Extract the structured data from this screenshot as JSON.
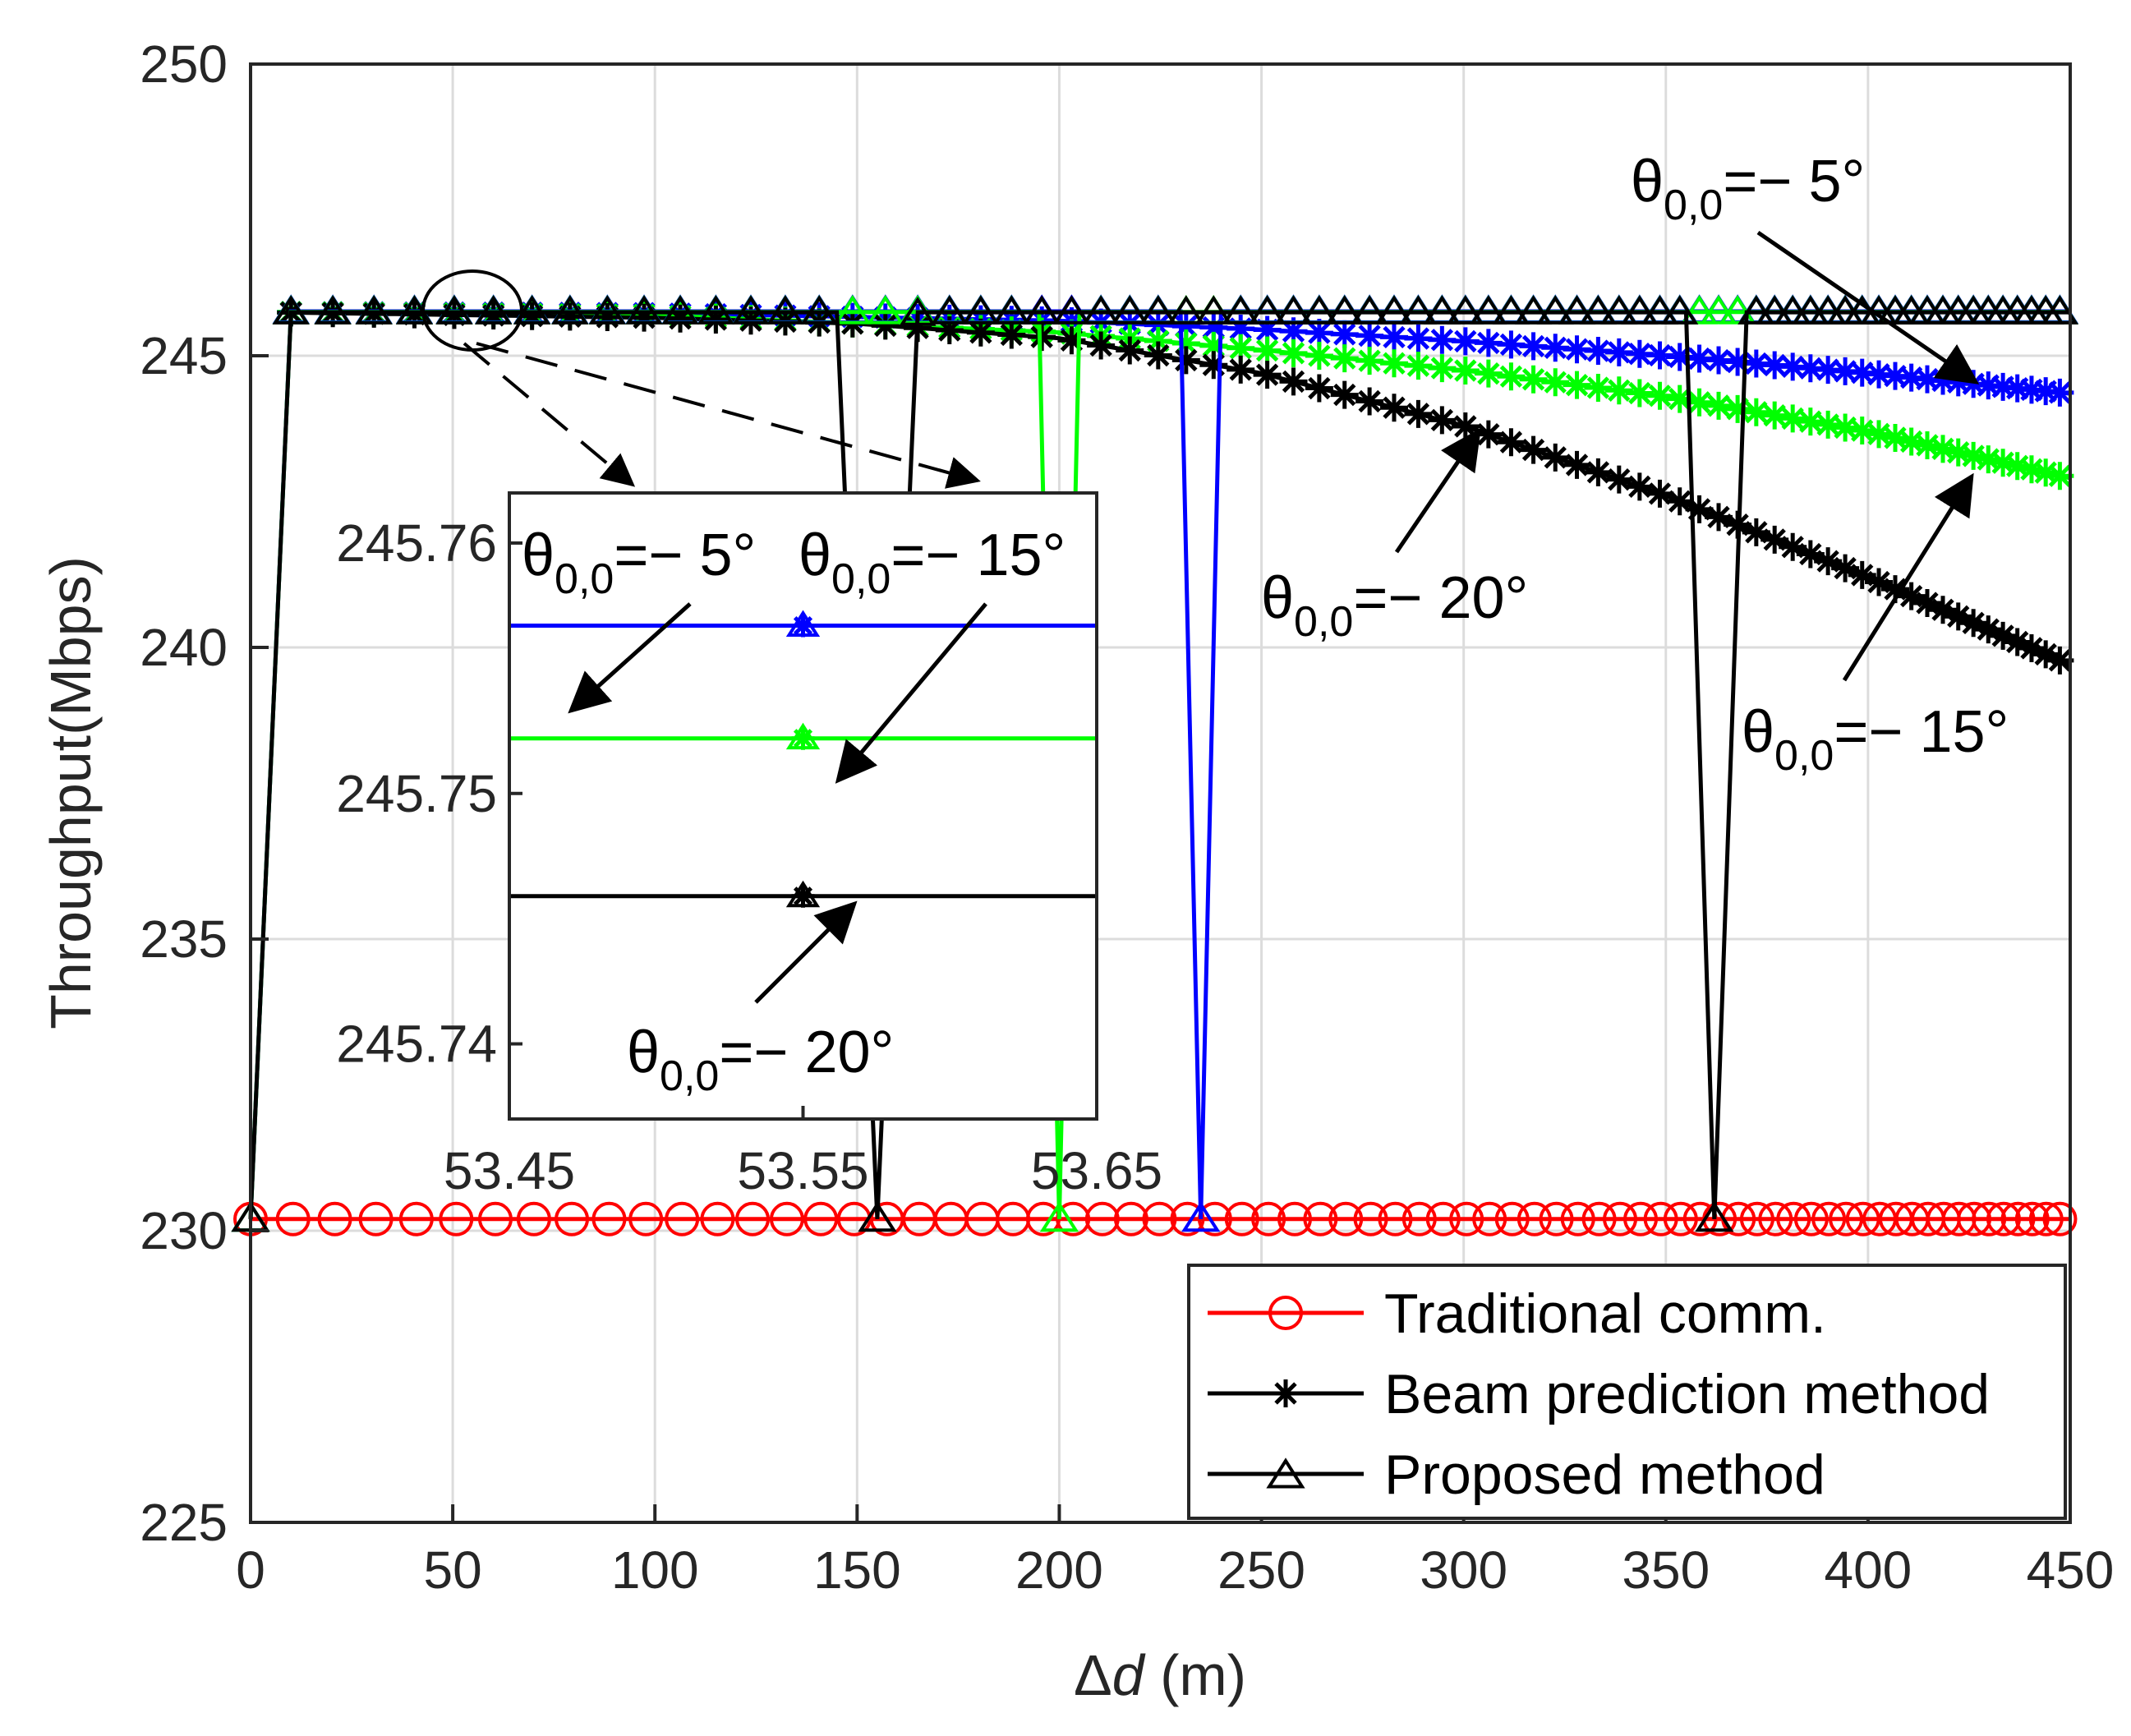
{
  "chart_data": {
    "type": "line",
    "title": "",
    "xlabel": "Δd (m)",
    "ylabel": "Throughput(Mbps)",
    "xlim": [
      0,
      450
    ],
    "ylim": [
      225,
      250
    ],
    "xticks": [
      0,
      50,
      100,
      150,
      200,
      250,
      300,
      350,
      400,
      450
    ],
    "yticks": [
      225,
      230,
      235,
      240,
      245,
      250
    ],
    "grid": true,
    "legend": {
      "position": "bottom-right",
      "entries": [
        {
          "label": "Traditional comm.",
          "color": "#ff0000",
          "marker": "circle"
        },
        {
          "label": "Beam prediction method",
          "color": "#000000",
          "marker": "asterisk"
        },
        {
          "label": "Proposed method",
          "color": "#000000",
          "marker": "triangle"
        }
      ]
    },
    "series": [
      {
        "name": "Traditional comm.",
        "color": "#ff0000",
        "marker": "circle",
        "x_range": [
          0,
          450
        ],
        "value": 230.2
      },
      {
        "name": "Beam prediction method θ0,0=−5°",
        "color": "#0000ff",
        "marker": "asterisk",
        "x": [
          10,
          100,
          200,
          250,
          300,
          350,
          400,
          450
        ],
        "y": [
          245.75,
          245.73,
          245.6,
          245.45,
          245.25,
          245.0,
          244.7,
          244.35
        ]
      },
      {
        "name": "Beam prediction method θ0,0=−15°",
        "color": "#00ff00",
        "marker": "asterisk",
        "x": [
          10,
          100,
          200,
          250,
          300,
          350,
          400,
          450
        ],
        "y": [
          245.75,
          245.7,
          245.4,
          245.1,
          244.75,
          244.3,
          243.7,
          242.9
        ]
      },
      {
        "name": "Beam prediction method θ0,0=−20°",
        "color": "#000000",
        "marker": "asterisk",
        "x": [
          10,
          100,
          150,
          200,
          250,
          300,
          350,
          400,
          450
        ],
        "y": [
          245.74,
          245.65,
          245.55,
          245.3,
          244.7,
          243.8,
          242.6,
          241.2,
          239.7
        ]
      },
      {
        "name": "Proposed method θ0,0=−5°",
        "color": "#0000ff",
        "marker": "triangle",
        "x": [
          0,
          10,
          230,
          235,
          240,
          450
        ],
        "y": [
          230.2,
          245.76,
          245.76,
          230.2,
          245.76,
          245.76
        ]
      },
      {
        "name": "Proposed method θ0,0=−15°",
        "color": "#00ff00",
        "marker": "triangle",
        "x": [
          0,
          10,
          195,
          200,
          205,
          450
        ],
        "y": [
          230.2,
          245.75,
          245.75,
          230.2,
          245.75,
          245.75
        ]
      },
      {
        "name": "Proposed method θ0,0=−20°",
        "color": "#000000",
        "marker": "triangle",
        "x": [
          0,
          10,
          145,
          155,
          165,
          355,
          362,
          370,
          450
        ],
        "y": [
          230.2,
          245.745,
          245.745,
          230.2,
          245.745,
          245.745,
          230.2,
          245.745,
          245.745
        ]
      }
    ],
    "annotations": [
      {
        "text": "θ0,0=− 5°",
        "points_to": {
          "x": 430,
          "y": 244.5
        }
      },
      {
        "text": "θ0,0=− 20°",
        "points_to": {
          "x": 305,
          "y": 243.8
        }
      },
      {
        "text": "θ0,0=− 15°",
        "points_to": {
          "x": 425,
          "y": 243.2
        }
      }
    ],
    "inset": {
      "zoom_center": {
        "x": 53.55,
        "y": 245.76
      },
      "xticks": [
        "53.45",
        "53.55",
        "53.65"
      ],
      "xlim": [
        53.45,
        53.65
      ],
      "yticks": [
        "245.74",
        "245.75",
        "245.76"
      ],
      "ylim": [
        245.737,
        245.762
      ],
      "series": [
        {
          "name": "θ0,0=−5°",
          "color": "#0000ff",
          "value": 245.7567,
          "marker_x": 53.55
        },
        {
          "name": "θ0,0=−15°",
          "color": "#00ff00",
          "value": 245.7522,
          "marker_x": 53.55
        },
        {
          "name": "θ0,0=−20°",
          "color": "#000000",
          "value": 245.7459,
          "marker_x": 53.55
        }
      ],
      "annotations": [
        "θ0,0=− 5°",
        "θ0,0=− 15°",
        "θ0,0=− 20°"
      ]
    }
  },
  "labels": {
    "ylabel": "Throughput(Mbps)",
    "xlabel_symbol": "Δ",
    "xlabel_var": "d",
    "xlabel_unit": " (m)",
    "theta": "θ",
    "sub": "0,0",
    "ann_m5": "=− 5°",
    "ann_m15": "=− 15°",
    "ann_m20": "=− 20°"
  }
}
